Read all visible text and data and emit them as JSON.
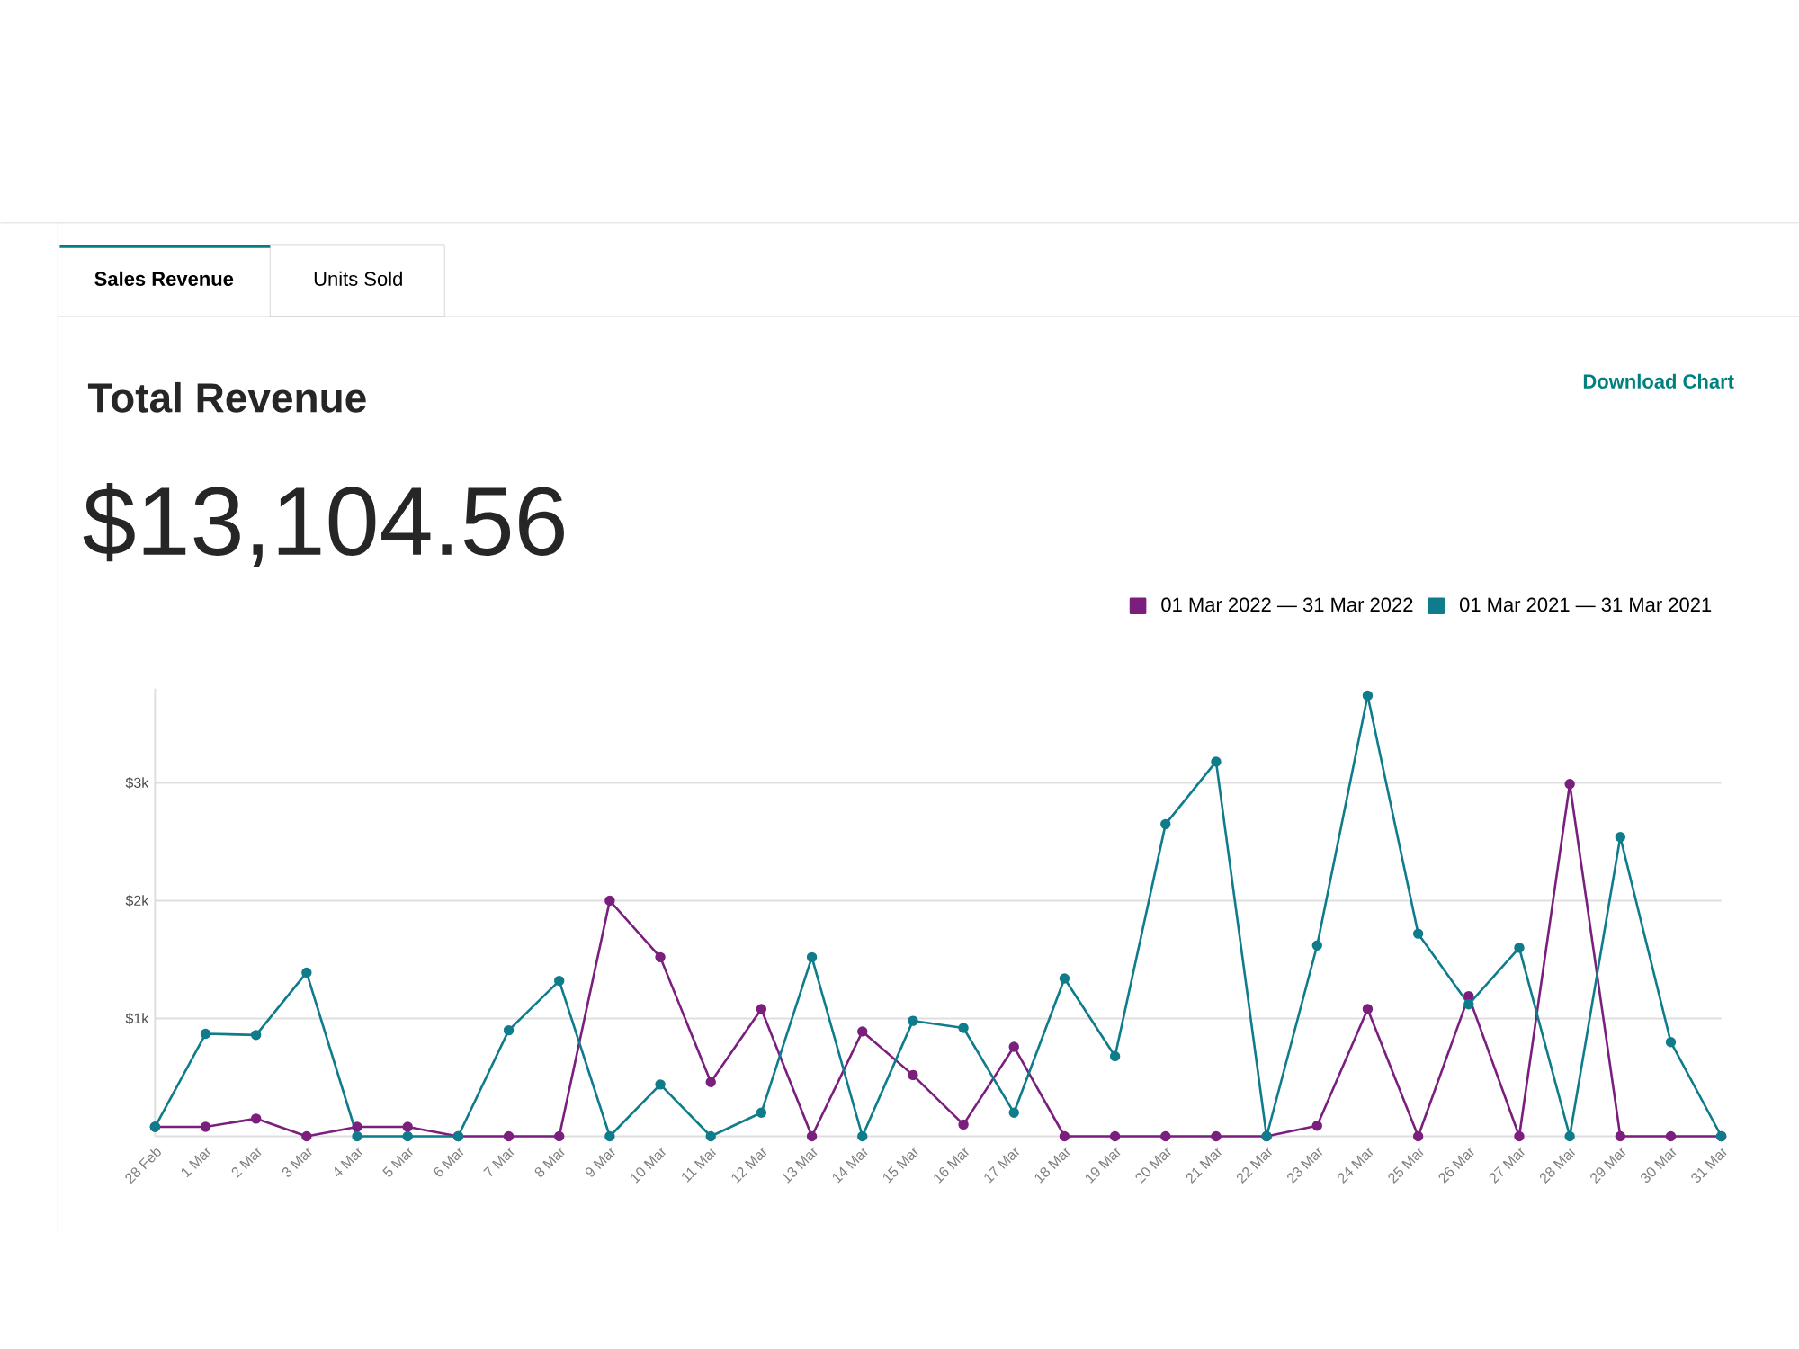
{
  "chart_data": {
    "type": "line",
    "title": "Total Revenue",
    "subtitle": "$13,104.56",
    "annotations": [
      "Sales Revenue",
      "Units Sold",
      "Download Chart"
    ],
    "categories": [
      "28 Feb",
      "1 Mar",
      "2 Mar",
      "3 Mar",
      "4 Mar",
      "5 Mar",
      "6 Mar",
      "7 Mar",
      "8 Mar",
      "9 Mar",
      "10 Mar",
      "11 Mar",
      "12 Mar",
      "13 Mar",
      "14 Mar",
      "15 Mar",
      "16 Mar",
      "17 Mar",
      "18 Mar",
      "19 Mar",
      "20 Mar",
      "21 Mar",
      "22 Mar",
      "23 Mar",
      "24 Mar",
      "25 Mar",
      "26 Mar",
      "27 Mar",
      "28 Mar",
      "29 Mar",
      "30 Mar",
      "31 Mar"
    ],
    "series": [
      {
        "name": "01 Mar 2022 — 31 Mar 2022",
        "color": "#7b1f7e",
        "values": [
          80,
          80,
          150,
          0,
          80,
          80,
          0,
          0,
          0,
          2000,
          1520,
          460,
          1080,
          0,
          890,
          520,
          100,
          760,
          0,
          0,
          0,
          0,
          0,
          90,
          1080,
          0,
          1190,
          0,
          2990,
          0,
          0,
          0
        ]
      },
      {
        "name": "01 Mar 2021 — 31 Mar 2021",
        "color": "#0f7c8c",
        "values": [
          80,
          870,
          860,
          1390,
          0,
          0,
          0,
          900,
          1320,
          0,
          440,
          0,
          200,
          1520,
          0,
          980,
          920,
          200,
          1340,
          680,
          2650,
          3180,
          0,
          1620,
          3740,
          1720,
          1120,
          1600,
          0,
          2540,
          800,
          0
        ]
      }
    ],
    "yticks": [
      {
        "value": 0,
        "label": null
      },
      {
        "value": 1000,
        "label": "$1k"
      },
      {
        "value": 2000,
        "label": "$2k"
      },
      {
        "value": 3000,
        "label": "$3k"
      }
    ],
    "ylim": [
      0,
      3800
    ],
    "grid": "y",
    "legend": "top right",
    "marker": "circle",
    "line_style": "solid"
  }
}
